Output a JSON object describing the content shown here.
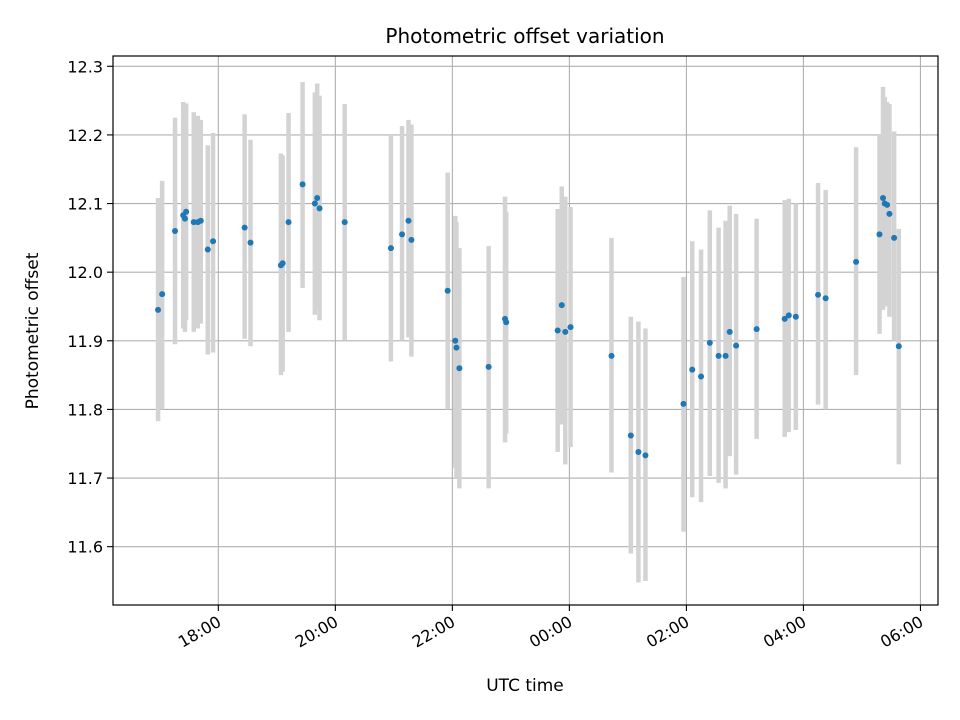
{
  "chart_data": {
    "type": "scatter",
    "title": "Photometric offset variation",
    "xlabel": "UTC time",
    "ylabel": "Photometric offset",
    "x_unit": "hours since 00:00 UTC (negative = previous evening)",
    "xlim": [
      -7.8,
      6.3
    ],
    "ylim": [
      11.515,
      12.315
    ],
    "grid": true,
    "x_ticks": [
      {
        "value": -6,
        "label": "18:00"
      },
      {
        "value": -4,
        "label": "20:00"
      },
      {
        "value": -2,
        "label": "22:00"
      },
      {
        "value": 0,
        "label": "00:00"
      },
      {
        "value": 2,
        "label": "02:00"
      },
      {
        "value": 4,
        "label": "04:00"
      },
      {
        "value": 6,
        "label": "06:00"
      }
    ],
    "y_ticks": [
      {
        "value": 11.6,
        "label": "11.6"
      },
      {
        "value": 11.7,
        "label": "11.7"
      },
      {
        "value": 11.8,
        "label": "11.8"
      },
      {
        "value": 11.9,
        "label": "11.9"
      },
      {
        "value": 12.0,
        "label": "12.0"
      },
      {
        "value": 12.1,
        "label": "12.1"
      },
      {
        "value": 12.2,
        "label": "12.2"
      },
      {
        "value": 12.3,
        "label": "12.3"
      }
    ],
    "colors": {
      "point": "#1f77b4",
      "errorbar": "#d3d3d3",
      "grid": "#b0b0b0"
    },
    "series": [
      {
        "points": [
          {
            "x": -7.03,
            "y": 11.945,
            "lo": 11.783,
            "hi": 12.108
          },
          {
            "x": -6.96,
            "y": 11.968,
            "lo": 11.8,
            "hi": 12.133
          },
          {
            "x": -6.74,
            "y": 12.06,
            "lo": 11.895,
            "hi": 12.225
          },
          {
            "x": -6.6,
            "y": 12.083,
            "lo": 11.918,
            "hi": 12.248
          },
          {
            "x": -6.57,
            "y": 12.078,
            "lo": 11.913,
            "hi": 12.243
          },
          {
            "x": -6.55,
            "y": 12.088,
            "lo": 11.93,
            "hi": 12.246
          },
          {
            "x": -6.42,
            "y": 12.073,
            "lo": 11.913,
            "hi": 12.233
          },
          {
            "x": -6.35,
            "y": 12.073,
            "lo": 11.918,
            "hi": 12.228
          },
          {
            "x": -6.3,
            "y": 12.075,
            "lo": 11.925,
            "hi": 12.222
          },
          {
            "x": -6.18,
            "y": 12.033,
            "lo": 11.88,
            "hi": 12.185
          },
          {
            "x": -6.09,
            "y": 12.045,
            "lo": 11.883,
            "hi": 12.203
          },
          {
            "x": -5.55,
            "y": 12.065,
            "lo": 11.903,
            "hi": 12.23
          },
          {
            "x": -5.45,
            "y": 12.043,
            "lo": 11.892,
            "hi": 12.193
          },
          {
            "x": -4.93,
            "y": 12.01,
            "lo": 11.85,
            "hi": 12.173
          },
          {
            "x": -4.9,
            "y": 12.013,
            "lo": 11.855,
            "hi": 12.17
          },
          {
            "x": -4.8,
            "y": 12.073,
            "lo": 11.913,
            "hi": 12.232
          },
          {
            "x": -4.56,
            "y": 12.128,
            "lo": 11.977,
            "hi": 12.277
          },
          {
            "x": -4.35,
            "y": 12.1,
            "lo": 11.938,
            "hi": 12.262
          },
          {
            "x": -4.31,
            "y": 12.108,
            "lo": 11.945,
            "hi": 12.275
          },
          {
            "x": -4.27,
            "y": 12.093,
            "lo": 11.93,
            "hi": 12.257
          },
          {
            "x": -3.84,
            "y": 12.073,
            "lo": 11.9,
            "hi": 12.245
          },
          {
            "x": -3.05,
            "y": 12.035,
            "lo": 11.87,
            "hi": 12.2
          },
          {
            "x": -2.86,
            "y": 12.055,
            "lo": 11.9,
            "hi": 12.213
          },
          {
            "x": -2.75,
            "y": 12.075,
            "lo": 11.905,
            "hi": 12.222
          },
          {
            "x": -2.7,
            "y": 12.047,
            "lo": 11.877,
            "hi": 12.215
          },
          {
            "x": -2.08,
            "y": 11.973,
            "lo": 11.8,
            "hi": 12.145
          },
          {
            "x": -1.95,
            "y": 11.9,
            "lo": 11.715,
            "hi": 12.082
          },
          {
            "x": -1.93,
            "y": 11.89,
            "lo": 11.7,
            "hi": 12.073
          },
          {
            "x": -1.88,
            "y": 11.86,
            "lo": 11.685,
            "hi": 12.035
          },
          {
            "x": -1.38,
            "y": 11.862,
            "lo": 11.685,
            "hi": 12.038
          },
          {
            "x": -1.1,
            "y": 11.932,
            "lo": 11.752,
            "hi": 12.11
          },
          {
            "x": -1.08,
            "y": 11.927,
            "lo": 11.765,
            "hi": 12.088
          },
          {
            "x": -0.2,
            "y": 11.915,
            "lo": 11.738,
            "hi": 12.092
          },
          {
            "x": -0.13,
            "y": 11.952,
            "lo": 11.778,
            "hi": 12.125
          },
          {
            "x": -0.07,
            "y": 11.913,
            "lo": 11.72,
            "hi": 12.11
          },
          {
            "x": 0.02,
            "y": 11.92,
            "lo": 11.745,
            "hi": 12.095
          },
          {
            "x": 0.72,
            "y": 11.878,
            "lo": 11.708,
            "hi": 12.05
          },
          {
            "x": 1.05,
            "y": 11.762,
            "lo": 11.59,
            "hi": 11.935
          },
          {
            "x": 1.18,
            "y": 11.738,
            "lo": 11.548,
            "hi": 11.928
          },
          {
            "x": 1.3,
            "y": 11.733,
            "lo": 11.55,
            "hi": 11.918
          },
          {
            "x": 1.95,
            "y": 11.808,
            "lo": 11.622,
            "hi": 11.993
          },
          {
            "x": 2.1,
            "y": 11.858,
            "lo": 11.672,
            "hi": 12.045
          },
          {
            "x": 2.25,
            "y": 11.848,
            "lo": 11.665,
            "hi": 12.033
          },
          {
            "x": 2.4,
            "y": 11.897,
            "lo": 11.703,
            "hi": 12.09
          },
          {
            "x": 2.55,
            "y": 11.878,
            "lo": 11.693,
            "hi": 12.065
          },
          {
            "x": 2.67,
            "y": 11.878,
            "lo": 11.685,
            "hi": 12.075
          },
          {
            "x": 2.74,
            "y": 11.913,
            "lo": 11.732,
            "hi": 12.097
          },
          {
            "x": 2.85,
            "y": 11.893,
            "lo": 11.705,
            "hi": 12.085
          },
          {
            "x": 3.2,
            "y": 11.917,
            "lo": 11.757,
            "hi": 12.078
          },
          {
            "x": 3.68,
            "y": 11.932,
            "lo": 11.76,
            "hi": 12.105
          },
          {
            "x": 3.75,
            "y": 11.937,
            "lo": 11.767,
            "hi": 12.107
          },
          {
            "x": 3.87,
            "y": 11.935,
            "lo": 11.77,
            "hi": 12.1
          },
          {
            "x": 4.25,
            "y": 11.967,
            "lo": 11.807,
            "hi": 12.13
          },
          {
            "x": 4.38,
            "y": 11.962,
            "lo": 11.8,
            "hi": 12.12
          },
          {
            "x": 4.9,
            "y": 12.015,
            "lo": 11.85,
            "hi": 12.182
          },
          {
            "x": 5.3,
            "y": 12.055,
            "lo": 11.91,
            "hi": 12.2
          },
          {
            "x": 5.36,
            "y": 12.108,
            "lo": 11.945,
            "hi": 12.27
          },
          {
            "x": 5.39,
            "y": 12.1,
            "lo": 11.95,
            "hi": 12.255
          },
          {
            "x": 5.43,
            "y": 12.098,
            "lo": 11.952,
            "hi": 12.248
          },
          {
            "x": 5.47,
            "y": 12.085,
            "lo": 11.935,
            "hi": 12.245
          },
          {
            "x": 5.55,
            "y": 12.05,
            "lo": 11.9,
            "hi": 12.205
          },
          {
            "x": 5.63,
            "y": 11.892,
            "lo": 11.72,
            "hi": 12.063
          }
        ]
      }
    ]
  }
}
